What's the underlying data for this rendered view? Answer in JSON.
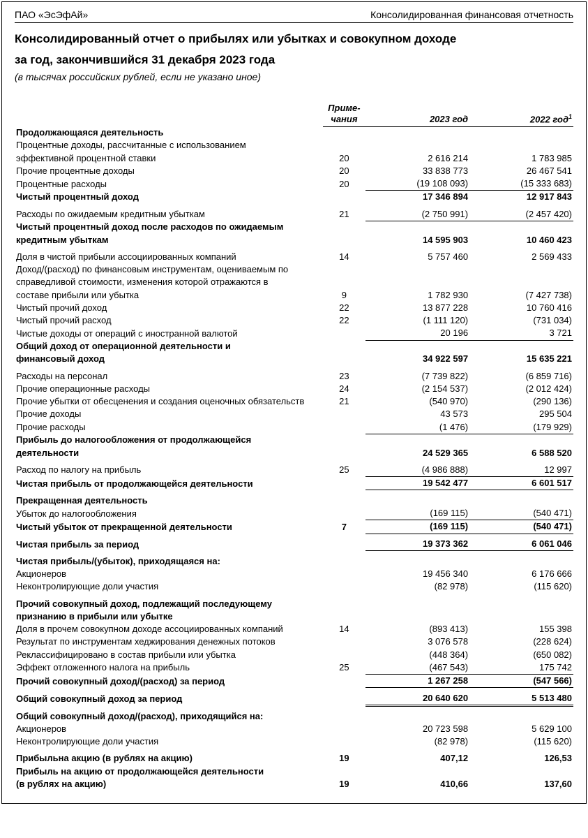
{
  "header": {
    "company": "ПАО «ЭсЭфАй»",
    "docType": "Консолидированная финансовая отчетность"
  },
  "title1": "Консолидированный отчет о прибылях или убытках и совокупном доходе",
  "title2": "за год, закончившийся 31 декабря 2023 года",
  "unitsNote": "(в тысячах российских рублей, если не указано иное)",
  "columns": {
    "notes": "Приме-\nчания",
    "year1": "2023 год",
    "year2": "2022 год",
    "year2_sup": "1"
  },
  "rows": [
    {
      "label": "Продолжающаяся деятельность",
      "bold": true
    },
    {
      "label": "Процентные доходы, рассчитанные с использованием"
    },
    {
      "label": "эффективной процентной ставки",
      "indent": true,
      "note": "20",
      "v1": "2 616 214",
      "v2": "1 783 985"
    },
    {
      "label": "Прочие процентные доходы",
      "note": "20",
      "v1": "33 838 773",
      "v2": "26 467 541"
    },
    {
      "label": "Процентные расходы",
      "note": "20",
      "v1": "(19 108 093)",
      "v2": "(15 333 683)",
      "borderBottom": true
    },
    {
      "label": "Чистый процентный доход",
      "bold": true,
      "v1": "17 346 894",
      "v2": "12 917 843",
      "boldVals": true
    },
    {
      "spacer": true
    },
    {
      "label": "Расходы по ожидаемым кредитным убыткам",
      "note": "21",
      "v1": "(2 750 991)",
      "v2": "(2 457 420)",
      "borderBottom": true
    },
    {
      "label": "Чистый процентный доход после расходов по ожидаемым",
      "bold": true
    },
    {
      "label": "кредитным убыткам",
      "bold": true,
      "indent": true,
      "v1": "14 595 903",
      "v2": "10 460 423",
      "boldVals": true
    },
    {
      "spacer": true
    },
    {
      "label": "Доля в чистой прибыли ассоциированных компаний",
      "note": "14",
      "v1": "5 757 460",
      "v2": "2 569 433"
    },
    {
      "label": "Доход/(расход) по финансовым инструментам, оцениваемым по"
    },
    {
      "label": "справедливой стоимости, изменения которой отражаются в",
      "indent": true
    },
    {
      "label": "составе прибыли или убытка",
      "indent": true,
      "note": "9",
      "v1": "1 782 930",
      "v2": "(7 427 738)"
    },
    {
      "label": "Чистый прочий доход",
      "note": "22",
      "v1": "13 877 228",
      "v2": "10 760 416"
    },
    {
      "label": "Чистый прочий расход",
      "note": "22",
      "v1": "(1 111 120)",
      "v2": "(731 034)"
    },
    {
      "label": "Чистые доходы от операций с иностранной валютой",
      "v1": "20 196",
      "v2": "3 721",
      "borderBottom": true
    },
    {
      "label": "Общий доход от операционной деятельности и",
      "bold": true
    },
    {
      "label": "финансовый доход",
      "bold": true,
      "indent": true,
      "v1": "34 922 597",
      "v2": "15 635 221",
      "boldVals": true
    },
    {
      "spacer": true
    },
    {
      "label": "Расходы на персонал",
      "note": "23",
      "v1": "(7 739 822)",
      "v2": "(6 859 716)"
    },
    {
      "label": "Прочие операционные расходы",
      "note": "24",
      "v1": "(2 154 537)",
      "v2": "(2 012 424)"
    },
    {
      "label": "Прочие убытки от обесценения и создания оценочных обязательств",
      "note": "21",
      "v1": "(540 970)",
      "v2": "(290 136)"
    },
    {
      "label": "Прочие доходы",
      "v1": "43 573",
      "v2": "295 504"
    },
    {
      "label": "Прочие расходы",
      "v1": "(1 476)",
      "v2": "(179 929)",
      "borderBottom": true
    },
    {
      "label": "Прибыль до налогообложения от продолжающейся",
      "bold": true
    },
    {
      "label": "деятельности",
      "bold": true,
      "indent": true,
      "v1": "24 529 365",
      "v2": "6 588 520",
      "boldVals": true
    },
    {
      "spacer": true
    },
    {
      "label": "Расход по налогу на прибыль",
      "note": "25",
      "v1": "(4 986 888)",
      "v2": "12 997",
      "borderBottom": true
    },
    {
      "label": "Чистая прибыль от продолжающейся деятельности",
      "bold": true,
      "v1": "19 542 477",
      "v2": "6 601 517",
      "boldVals": true,
      "borderBottom": true
    },
    {
      "spacer": true
    },
    {
      "label": "Прекращенная деятельность",
      "bold": true
    },
    {
      "label": "Убыток до налогообложения",
      "v1": "(169 115)",
      "v2": "(540 471)",
      "borderBottom": true
    },
    {
      "label": "Чистый убыток от прекращенной деятельности",
      "bold": true,
      "note": "7",
      "v1": "(169 115)",
      "v2": "(540 471)",
      "boldVals": true,
      "thickBottom": true
    },
    {
      "spacer": true
    },
    {
      "label": "Чистая прибыль за период",
      "bold": true,
      "v1": "19 373 362",
      "v2": "6 061 046",
      "boldVals": true,
      "thickBottom": true
    },
    {
      "spacer": true
    },
    {
      "label": "Чистая прибыль/(убыток), приходящаяся на:",
      "bold": true
    },
    {
      "label": "Акционеров",
      "v1": "19 456 340",
      "v2": "6 176 666"
    },
    {
      "label": "Неконтролирующие доли участия",
      "v1": "(82 978)",
      "v2": "(115 620)"
    },
    {
      "spacer": true
    },
    {
      "label": "Прочий совокупный доход, подлежащий последующему",
      "bold": true
    },
    {
      "label": "признанию в прибыли или убытке",
      "bold": true,
      "indent": true
    },
    {
      "label": "Доля в прочем совокупном доходе ассоциированных компаний",
      "note": "14",
      "v1": "(893 413)",
      "v2": "155 398"
    },
    {
      "label": "Результат по инструментам хеджирования денежных потоков",
      "v1": "3 076 578",
      "v2": "(228 624)"
    },
    {
      "label": "Реклассифицировано в состав прибыли или убытка",
      "v1": "(448 364)",
      "v2": "(650 082)"
    },
    {
      "label": "Эффект отложенного налога на прибыль",
      "note": "25",
      "v1": "(467 543)",
      "v2": "175 742",
      "borderBottom": true
    },
    {
      "label": "Прочий совокупный доход/(расход) за период",
      "bold": true,
      "v1": "1 267 258",
      "v2": "(547 566)",
      "boldVals": true,
      "thickBottom": true
    },
    {
      "spacer": true
    },
    {
      "label": "Общий совокупный доход за период",
      "bold": true,
      "v1": "20 640 620",
      "v2": "5 513 480",
      "boldVals": true,
      "doubleBottom": true
    },
    {
      "spacer": true
    },
    {
      "label": "Общий совокупный доход/(расход), приходящийся на:",
      "bold": true
    },
    {
      "label": "Акционеров",
      "v1": "20 723 598",
      "v2": "5 629 100"
    },
    {
      "label": "Неконтролирующие доли участия",
      "v1": "(82 978)",
      "v2": "(115 620)"
    },
    {
      "spacer": true
    },
    {
      "label": "Прибыльна акцию (в рублях на акцию)",
      "bold": true,
      "note": "19",
      "v1": "407,12",
      "v2": "126,53",
      "boldVals": true
    },
    {
      "label": "Прибыль на акцию от продолжающейся деятельности",
      "bold": true
    },
    {
      "label": "(в рублях на акцию)",
      "bold": true,
      "indent": true,
      "note": "19",
      "v1": "410,66",
      "v2": "137,60",
      "boldVals": true
    }
  ]
}
